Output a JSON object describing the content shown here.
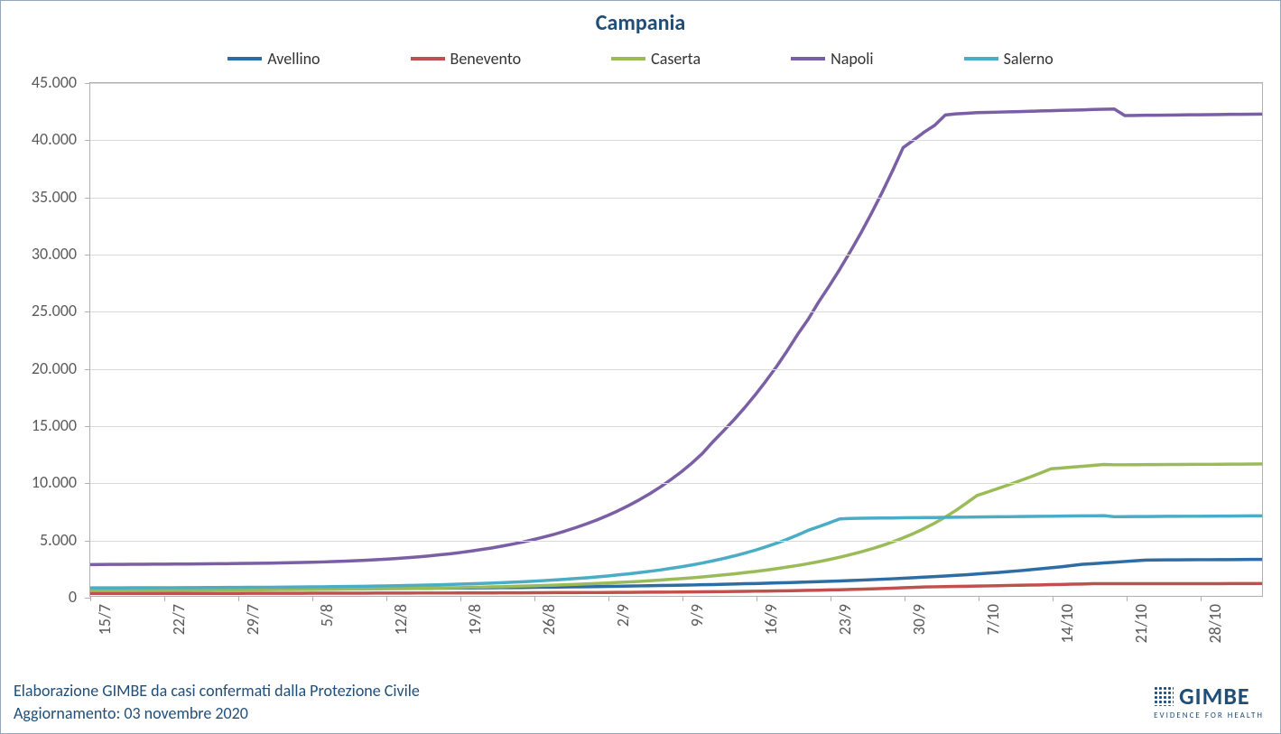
{
  "chart": {
    "type": "line",
    "title": "Campania",
    "title_fontsize": 24,
    "title_color": "#1f4e79",
    "background_color": "#ffffff",
    "border_color": "#8ea9c0",
    "grid_color": "#d9d9d9",
    "axis_color": "#b0b0b0",
    "tick_label_color": "#5a5a5a",
    "tick_label_fontsize": 18,
    "line_width": 3.5,
    "ylim": [
      0,
      45000
    ],
    "ytick_step": 5000,
    "y_ticks": [
      "0",
      "5.000",
      "10.000",
      "15.000",
      "20.000",
      "25.000",
      "30.000",
      "35.000",
      "40.000",
      "45.000"
    ],
    "x_labels": [
      "15/7",
      "22/7",
      "29/7",
      "5/8",
      "12/8",
      "19/8",
      "26/8",
      "2/9",
      "9/9",
      "16/9",
      "23/9",
      "30/9",
      "7/10",
      "14/10",
      "21/10",
      "28/10"
    ],
    "x_tick_step_days": 7,
    "n_points": 112,
    "series": [
      {
        "name": "Avellino",
        "color": "#2e6ca4",
        "values": [
          550,
          552,
          555,
          557,
          560,
          562,
          565,
          568,
          570,
          573,
          575,
          578,
          580,
          583,
          585,
          588,
          590,
          593,
          596,
          598,
          601,
          603,
          606,
          610,
          615,
          620,
          625,
          630,
          636,
          642,
          648,
          655,
          662,
          669,
          676,
          684,
          692,
          700,
          709,
          718,
          727,
          737,
          747,
          757,
          768,
          780,
          792,
          804,
          817,
          830,
          844,
          858,
          873,
          889,
          905,
          922,
          940,
          958,
          977,
          997,
          1018,
          1039,
          1062,
          1085,
          1109,
          1135,
          1161,
          1189,
          1218,
          1248,
          1280,
          1313,
          1347,
          1383,
          1421,
          1461,
          1502,
          1546,
          1592,
          1640,
          1691,
          1744,
          1800,
          1859,
          1921,
          1986,
          2055,
          2128,
          2205,
          2287,
          2373,
          2464,
          2560,
          2662,
          2769,
          2828,
          2888,
          2950,
          3013,
          3078,
          3144,
          3150,
          3155,
          3160,
          3165,
          3170,
          3175,
          3180,
          3185,
          3190,
          3195,
          3200
        ]
      },
      {
        "name": "Benevento",
        "color": "#c0504d",
        "values": [
          210,
          211,
          212,
          213,
          214,
          215,
          216,
          217,
          218,
          219,
          220,
          221,
          222,
          223,
          224,
          225,
          226,
          228,
          229,
          230,
          232,
          233,
          234,
          236,
          237,
          239,
          240,
          242,
          244,
          245,
          247,
          249,
          251,
          253,
          255,
          257,
          259,
          262,
          264,
          267,
          269,
          272,
          275,
          278,
          281,
          284,
          288,
          292,
          296,
          300,
          305,
          310,
          315,
          321,
          327,
          333,
          340,
          348,
          356,
          365,
          374,
          384,
          395,
          407,
          419,
          433,
          447,
          463,
          480,
          498,
          518,
          539,
          562,
          587,
          614,
          643,
          674,
          708,
          745,
          785,
          800,
          815,
          830,
          846,
          862,
          879,
          896,
          913,
          931,
          949,
          967,
          986,
          1005,
          1025,
          1045,
          1066,
          1066,
          1067,
          1068,
          1069,
          1070,
          1071,
          1072,
          1073,
          1074,
          1075,
          1076,
          1077,
          1078,
          1079,
          1080,
          1080
        ]
      },
      {
        "name": "Caserta",
        "color": "#9bbb59",
        "values": [
          480,
          483,
          486,
          489,
          492,
          495,
          498,
          501,
          505,
          508,
          512,
          516,
          520,
          524,
          529,
          534,
          539,
          544,
          550,
          556,
          562,
          569,
          576,
          584,
          592,
          601,
          610,
          620,
          631,
          642,
          654,
          667,
          681,
          696,
          712,
          729,
          747,
          766,
          787,
          809,
          832,
          857,
          884,
          912,
          943,
          975,
          1010,
          1047,
          1087,
          1129,
          1174,
          1222,
          1274,
          1329,
          1388,
          1451,
          1518,
          1590,
          1667,
          1749,
          1837,
          1932,
          2033,
          2142,
          2260,
          2386,
          2523,
          2670,
          2830,
          3003,
          3190,
          3394,
          3616,
          3859,
          4125,
          4416,
          4737,
          5090,
          5480,
          5910,
          6386,
          6913,
          7498,
          8149,
          8811,
          9112,
          9423,
          9745,
          10078,
          10421,
          10777,
          11145,
          11220,
          11295,
          11371,
          11447,
          11524,
          11500,
          11505,
          11510,
          11515,
          11520,
          11525,
          11530,
          11535,
          11540,
          11545,
          11550,
          11555,
          11560,
          11565,
          11570
        ]
      },
      {
        "name": "Napoli",
        "color": "#7a5fa5",
        "values": [
          2750,
          2755,
          2760,
          2765,
          2770,
          2775,
          2780,
          2786,
          2792,
          2798,
          2805,
          2812,
          2820,
          2829,
          2839,
          2850,
          2862,
          2876,
          2892,
          2910,
          2930,
          2953,
          2979,
          3008,
          3041,
          3078,
          3120,
          3167,
          3220,
          3279,
          3345,
          3419,
          3500,
          3590,
          3690,
          3800,
          3922,
          4055,
          4201,
          4362,
          4538,
          4730,
          4940,
          5169,
          5419,
          5692,
          5989,
          6313,
          6666,
          7051,
          7470,
          7926,
          8423,
          8964,
          9554,
          10197,
          10897,
          11660,
          12514,
          13543,
          14495,
          15477,
          16526,
          17646,
          18841,
          20117,
          21479,
          22934,
          24260,
          25790,
          27188,
          28661,
          30214,
          31851,
          33576,
          35395,
          37311,
          39332,
          40000,
          40700,
          41300,
          42200,
          42300,
          42350,
          42400,
          42425,
          42450,
          42475,
          42500,
          42525,
          42550,
          42575,
          42600,
          42625,
          42650,
          42675,
          42700,
          42725,
          42150,
          42160,
          42170,
          42180,
          42190,
          42200,
          42210,
          42220,
          42230,
          42240,
          42250,
          42260,
          42270,
          42280
        ]
      },
      {
        "name": "Salerno",
        "color": "#4bacc6",
        "values": [
          700,
          702,
          704,
          706,
          709,
          711,
          714,
          717,
          720,
          723,
          727,
          731,
          735,
          739,
          744,
          749,
          755,
          761,
          768,
          775,
          783,
          792,
          801,
          811,
          822,
          834,
          847,
          861,
          876,
          893,
          911,
          930,
          951,
          974,
          999,
          1026,
          1055,
          1087,
          1121,
          1158,
          1198,
          1242,
          1289,
          1340,
          1395,
          1455,
          1520,
          1590,
          1666,
          1748,
          1837,
          1934,
          2039,
          2153,
          2277,
          2412,
          2558,
          2717,
          2890,
          3078,
          3283,
          3506,
          3749,
          4014,
          4303,
          4618,
          4962,
          5338,
          5750,
          6068,
          6404,
          6758,
          6800,
          6810,
          6820,
          6830,
          6840,
          6850,
          6860,
          6870,
          6880,
          6890,
          6900,
          6910,
          6920,
          6930,
          6940,
          6950,
          6960,
          6970,
          6980,
          6990,
          7000,
          7010,
          7020,
          7030,
          7040,
          6950,
          6955,
          6960,
          6965,
          6970,
          6975,
          6980,
          6985,
          6990,
          6995,
          7000,
          7005,
          7010,
          7015,
          7020
        ]
      }
    ],
    "legend": {
      "items": [
        "Avellino",
        "Benevento",
        "Caserta",
        "Napoli",
        "Salerno"
      ],
      "fontsize": 18
    }
  },
  "footer": {
    "line1": "Elaborazione GIMBE da casi confermati dalla Protezione Civile",
    "line2": "Aggiornamento: 03 novembre 2020",
    "color": "#1f4e79",
    "fontsize": 18
  },
  "logo": {
    "main": "GIMBE",
    "sub": "EVIDENCE FOR HEALTH",
    "color": "#1f4e79"
  }
}
